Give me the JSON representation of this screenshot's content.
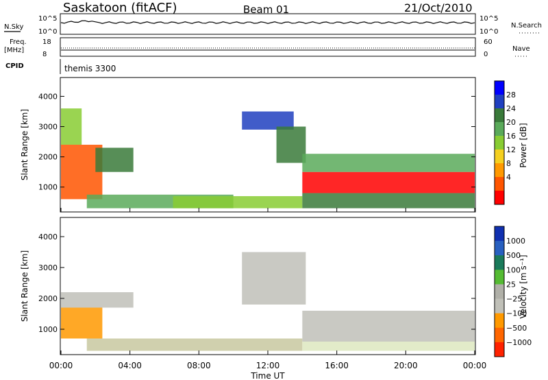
{
  "header": {
    "station": "Saskatoon (fitACF)",
    "beam": "Beam 01",
    "date": "21/Oct/2010"
  },
  "strips": {
    "nsky_label": "N.Sky",
    "nsky_ticks": [
      "10^5",
      "10^0"
    ],
    "nsearch_label": "N.Search",
    "nsearch_ticks": [
      "10^5",
      "10^0"
    ],
    "freq_label": "Freq.",
    "freq_unit": "[MHz]",
    "freq_ticks": [
      "18",
      "8"
    ],
    "nave_label": "Nave",
    "nave_ticks": [
      "60",
      "0"
    ],
    "cpid_label": "CPID",
    "cpid_value": "themis 3300"
  },
  "chart_data": [
    {
      "type": "heatmap",
      "name": "power",
      "ylabel": "Slant Range [km]",
      "ylim": [
        200,
        4600
      ],
      "yticks": [
        "4000",
        "3000",
        "2000",
        "1000"
      ],
      "colorbar_label": "Power [dB]",
      "colorbar_ticks": [
        "28",
        "24",
        "20",
        "16",
        "12",
        "8",
        "4"
      ],
      "colorbar_colors": [
        "#0000ff",
        "#2040c0",
        "#3a7a3a",
        "#5aaa5a",
        "#88cc33",
        "#f5d020",
        "#ff9900",
        "#ff5500",
        "#ff0000"
      ],
      "regions": [
        {
          "t0": 0.0,
          "t1": 2.4,
          "r0": 600,
          "r1": 2400,
          "color": "#ff5500"
        },
        {
          "t0": 0.0,
          "t1": 1.2,
          "r0": 2400,
          "r1": 3600,
          "color": "#88cc33"
        },
        {
          "t0": 2.0,
          "t1": 4.2,
          "r0": 1500,
          "r1": 2300,
          "color": "#3a7a3a"
        },
        {
          "t0": 1.5,
          "t1": 10.0,
          "r0": 300,
          "r1": 750,
          "color": "#5aaa5a"
        },
        {
          "t0": 6.5,
          "t1": 14.0,
          "r0": 300,
          "r1": 700,
          "color": "#88cc33"
        },
        {
          "t0": 10.5,
          "t1": 13.5,
          "r0": 2900,
          "r1": 3500,
          "color": "#2040c0"
        },
        {
          "t0": 12.5,
          "t1": 14.2,
          "r0": 1800,
          "r1": 3000,
          "color": "#3a7a3a"
        },
        {
          "t0": 14.0,
          "t1": 24.0,
          "r0": 800,
          "r1": 1500,
          "color": "#ff0000"
        },
        {
          "t0": 14.0,
          "t1": 24.0,
          "r0": 1500,
          "r1": 2100,
          "color": "#5aaa5a"
        },
        {
          "t0": 14.0,
          "t1": 24.0,
          "r0": 300,
          "r1": 800,
          "color": "#3a7a3a"
        }
      ]
    },
    {
      "type": "heatmap",
      "name": "velocity",
      "ylabel": "Slant Range [km]",
      "ylim": [
        200,
        4600
      ],
      "yticks": [
        "4000",
        "3000",
        "2000",
        "1000"
      ],
      "xlabel": "Time UT",
      "xticks": [
        "00:00",
        "04:00",
        "08:00",
        "12:00",
        "16:00",
        "20:00",
        "00:00"
      ],
      "colorbar_label": "Velocity [m s⁻¹]",
      "colorbar_ticks": [
        "1000",
        "500",
        "100",
        "25",
        "−25",
        "−100",
        "−500",
        "−1000"
      ],
      "colorbar_colors": [
        "#1030b0",
        "#2860c0",
        "#1a7a5a",
        "#55bb33",
        "#b0b0a8",
        "#c0c0b8",
        "#ff9900",
        "#ff6600",
        "#ff2200"
      ],
      "regions": [
        {
          "t0": 0.0,
          "t1": 2.4,
          "r0": 700,
          "r1": 1700,
          "color": "#ff9900"
        },
        {
          "t0": 0.0,
          "t1": 4.2,
          "r0": 1700,
          "r1": 2200,
          "color": "#c0c0b8"
        },
        {
          "t0": 1.5,
          "t1": 14.0,
          "r0": 300,
          "r1": 700,
          "color": "#c8c8a0"
        },
        {
          "t0": 10.5,
          "t1": 14.2,
          "r0": 1800,
          "r1": 3500,
          "color": "#c0c0b8"
        },
        {
          "t0": 14.0,
          "t1": 24.0,
          "r0": 600,
          "r1": 1600,
          "color": "#c0c0b8"
        },
        {
          "t0": 14.0,
          "t1": 24.0,
          "r0": 300,
          "r1": 600,
          "color": "#dde8c0"
        }
      ]
    }
  ]
}
